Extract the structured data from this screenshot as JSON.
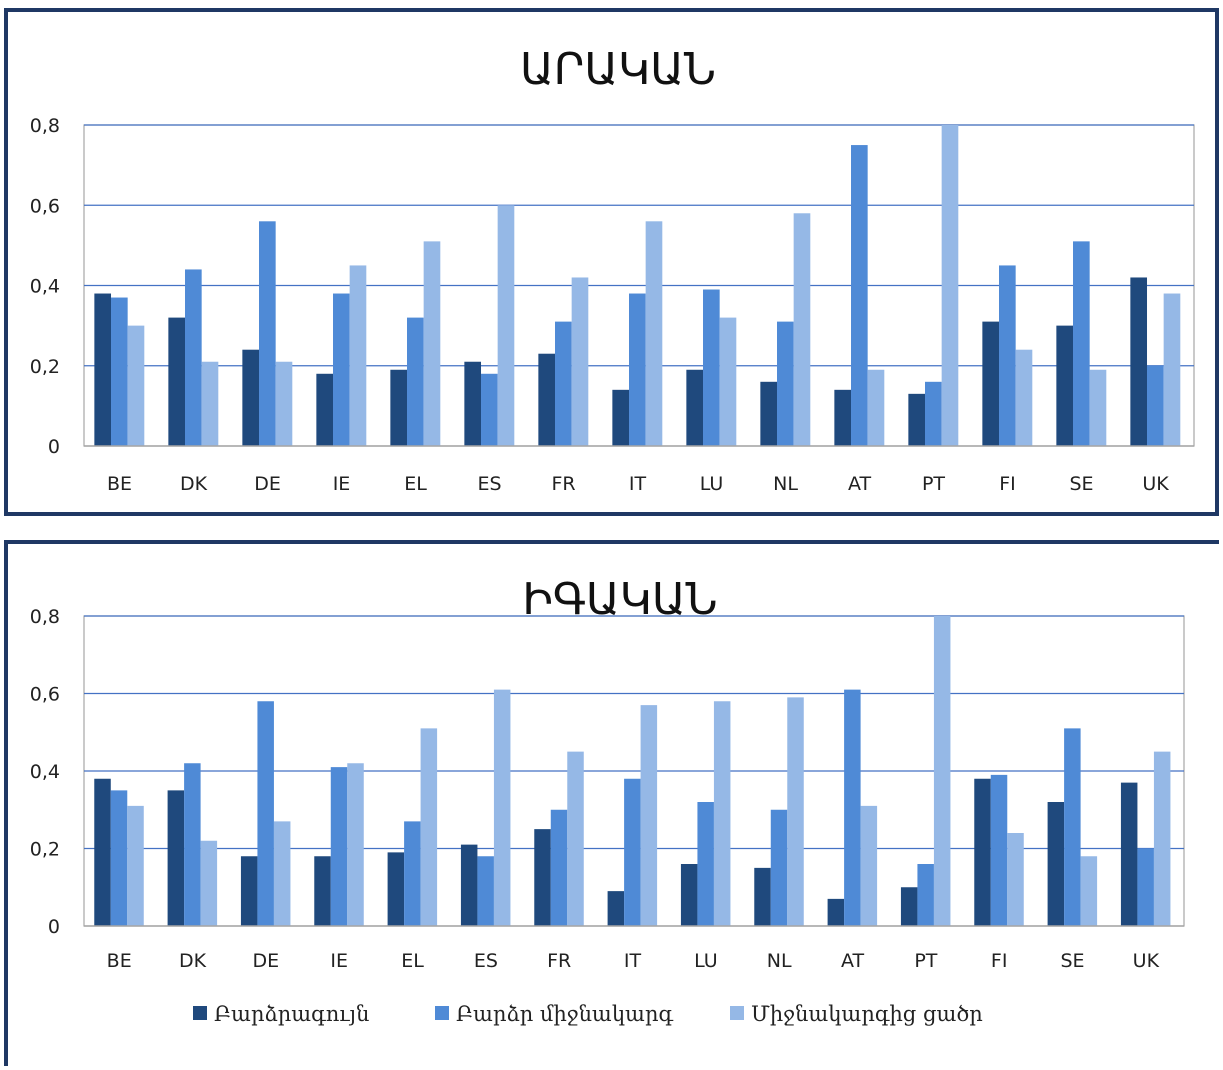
{
  "colors": {
    "series1": "#1f497d",
    "series2": "#4f8ad6",
    "series3": "#95b8e6"
  },
  "chart_data": [
    {
      "type": "bar",
      "title": "ԱՐԱԿԱՆ",
      "categories": [
        "BE",
        "DK",
        "DE",
        "IE",
        "EL",
        "ES",
        "FR",
        "IT",
        "LU",
        "NL",
        "AT",
        "PT",
        "FI",
        "SE",
        "UK"
      ],
      "ylim": [
        0,
        0.8
      ],
      "yticks": [
        "0",
        "0,2",
        "0,4",
        "0,6",
        "0,8"
      ],
      "series": [
        {
          "name": "Բարձրագույն",
          "values": [
            0.38,
            0.32,
            0.24,
            0.18,
            0.19,
            0.21,
            0.23,
            0.14,
            0.19,
            0.16,
            0.14,
            0.13,
            0.31,
            0.3,
            0.42
          ]
        },
        {
          "name": "Բարձր միջնակարգ",
          "values": [
            0.37,
            0.44,
            0.56,
            0.38,
            0.32,
            0.18,
            0.31,
            0.38,
            0.39,
            0.31,
            0.75,
            0.16,
            0.45,
            0.51,
            0.2
          ]
        },
        {
          "name": "Միջնակարգից ցածր",
          "values": [
            0.3,
            0.21,
            0.21,
            0.45,
            0.51,
            0.6,
            0.42,
            0.56,
            0.32,
            0.58,
            0.19,
            0.8,
            0.24,
            0.19,
            0.38
          ]
        }
      ],
      "grid": true
    },
    {
      "type": "bar",
      "title": "ԻԳԱԿԱՆ",
      "categories": [
        "BE",
        "DK",
        "DE",
        "IE",
        "EL",
        "ES",
        "FR",
        "IT",
        "LU",
        "NL",
        "AT",
        "PT",
        "FI",
        "SE",
        "UK"
      ],
      "ylim": [
        0,
        0.8
      ],
      "yticks": [
        "0",
        "0,2",
        "0,4",
        "0,6",
        "0,8"
      ],
      "series": [
        {
          "name": "Բարձրագույն",
          "values": [
            0.38,
            0.35,
            0.18,
            0.18,
            0.19,
            0.21,
            0.25,
            0.09,
            0.16,
            0.15,
            0.07,
            0.1,
            0.38,
            0.32,
            0.37
          ]
        },
        {
          "name": "Բարձր միջնակարգ",
          "values": [
            0.35,
            0.42,
            0.58,
            0.41,
            0.27,
            0.18,
            0.3,
            0.38,
            0.32,
            0.3,
            0.61,
            0.16,
            0.39,
            0.51,
            0.2
          ]
        },
        {
          "name": "Միջնակարգից ցածր",
          "values": [
            0.31,
            0.22,
            0.27,
            0.42,
            0.51,
            0.61,
            0.45,
            0.57,
            0.58,
            0.59,
            0.31,
            0.8,
            0.24,
            0.18,
            0.45
          ]
        }
      ],
      "grid": true,
      "legend": "bottom"
    }
  ]
}
